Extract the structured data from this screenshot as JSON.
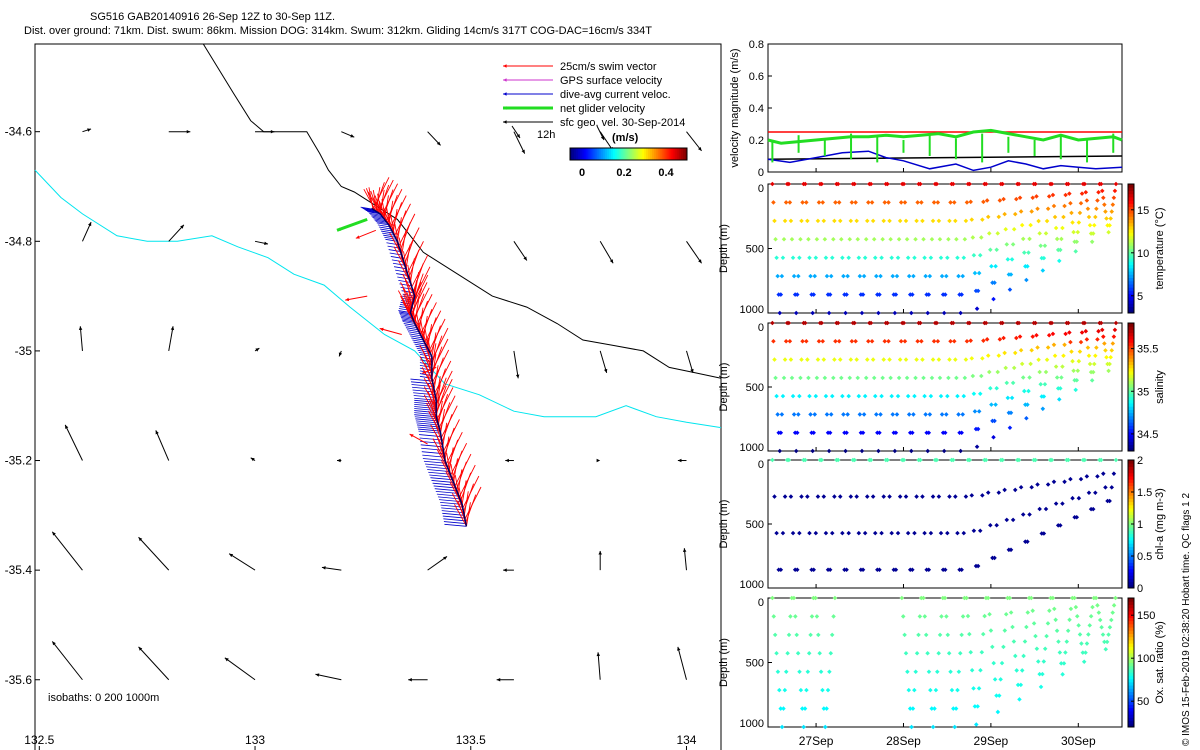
{
  "title_line1": "SG516 GAB20140916 26-Sep 12Z to 30-Sep 11Z.",
  "title_line2": "Dist. over ground: 71km. Dist. swum: 86km. Mission DOG: 314km. Swum: 312km. Gliding 14cm/s 317T COG-DAC=16cm/s 334T",
  "side_note": "© IMOS 15-Feb-2019 02:38:20 Hobart time. QC flags 1  2",
  "colors": {
    "swim": "#ff0000",
    "gps": "#cc33cc",
    "dac": "#0000cc",
    "net": "#22dd22",
    "geo": "#000000",
    "isobath0": "#000000",
    "isobath200": "#00e5ee"
  },
  "map": {
    "x_ticks": [
      "132.5",
      "133",
      "133.5",
      "134"
    ],
    "y_ticks": [
      "-34.6",
      "-34.8",
      "-35",
      "-35.2",
      "-35.4",
      "-35.6"
    ],
    "xlim": [
      132.49,
      134.08
    ],
    "ylim": [
      -35.73,
      -34.44
    ],
    "isobath_label": "isobaths: 0   200   1000m",
    "legend": {
      "swim": "25cm/s swim vector",
      "gps": "GPS surface velocity",
      "dac": "dive-avg current veloc.",
      "net": "net glider velocity",
      "geo": "sfc geo. vel. 30-Sep-2014",
      "time_label": "12h",
      "colorbar_unit": "(m/s)",
      "colorbar_ticks": [
        "0",
        "0.2",
        "0.4"
      ]
    }
  },
  "chart_data": [
    {
      "type": "scatter",
      "name": "track map",
      "xlim": [
        132.49,
        134.08
      ],
      "ylim": [
        -35.73,
        -34.44
      ],
      "isobath_0": [
        [
          132.88,
          -34.44
        ],
        [
          132.95,
          -34.53
        ],
        [
          132.99,
          -34.58
        ],
        [
          133.02,
          -34.6
        ],
        [
          133.12,
          -34.6
        ],
        [
          133.15,
          -34.64
        ],
        [
          133.17,
          -34.67
        ],
        [
          133.2,
          -34.7
        ],
        [
          133.23,
          -34.71
        ],
        [
          133.27,
          -34.73
        ],
        [
          133.33,
          -34.76
        ],
        [
          133.39,
          -34.82
        ],
        [
          133.47,
          -34.86
        ],
        [
          133.55,
          -34.9
        ],
        [
          133.63,
          -34.92
        ],
        [
          133.7,
          -34.95
        ],
        [
          133.76,
          -34.98
        ],
        [
          133.83,
          -34.99
        ],
        [
          133.9,
          -35.0
        ],
        [
          133.96,
          -35.03
        ],
        [
          134.02,
          -35.04
        ],
        [
          134.08,
          -35.05
        ]
      ],
      "isobath_200": [
        [
          132.49,
          -34.67
        ],
        [
          132.55,
          -34.72
        ],
        [
          132.6,
          -34.75
        ],
        [
          132.68,
          -34.79
        ],
        [
          132.75,
          -34.8
        ],
        [
          132.82,
          -34.8
        ],
        [
          132.9,
          -34.79
        ],
        [
          132.96,
          -34.81
        ],
        [
          133.03,
          -34.83
        ],
        [
          133.09,
          -34.86
        ],
        [
          133.16,
          -34.88
        ],
        [
          133.22,
          -34.92
        ],
        [
          133.3,
          -34.97
        ],
        [
          133.37,
          -35.0
        ],
        [
          133.44,
          -35.06
        ],
        [
          133.52,
          -35.08
        ],
        [
          133.6,
          -35.11
        ],
        [
          133.67,
          -35.12
        ],
        [
          133.73,
          -35.12
        ],
        [
          133.79,
          -35.12
        ],
        [
          133.86,
          -35.1
        ],
        [
          133.93,
          -35.12
        ],
        [
          134.0,
          -35.13
        ],
        [
          134.08,
          -35.14
        ]
      ],
      "glider_track": [
        [
          133.49,
          -35.32
        ],
        [
          133.48,
          -35.28
        ],
        [
          133.46,
          -35.24
        ],
        [
          133.44,
          -35.2
        ],
        [
          133.43,
          -35.15
        ],
        [
          133.42,
          -35.12
        ],
        [
          133.42,
          -35.09
        ],
        [
          133.41,
          -35.05
        ],
        [
          133.41,
          -35.01
        ],
        [
          133.39,
          -34.98
        ],
        [
          133.37,
          -34.95
        ],
        [
          133.36,
          -34.93
        ],
        [
          133.37,
          -34.9
        ],
        [
          133.35,
          -34.85
        ],
        [
          133.33,
          -34.8
        ],
        [
          133.31,
          -34.77
        ],
        [
          133.29,
          -34.75
        ],
        [
          133.27,
          -34.74
        ]
      ],
      "geo_vectors": [
        [
          132.6,
          -34.6,
          0.02,
          0.005
        ],
        [
          132.8,
          -34.6,
          0.05,
          0.0
        ],
        [
          133.0,
          -34.6,
          0.045,
          0.0
        ],
        [
          133.2,
          -34.6,
          0.03,
          -0.01
        ],
        [
          133.4,
          -34.6,
          0.03,
          -0.025
        ],
        [
          133.6,
          -34.6,
          0.025,
          -0.04
        ],
        [
          133.8,
          -34.6,
          0.03,
          -0.035
        ],
        [
          134.0,
          -34.6,
          0.035,
          -0.035
        ],
        [
          132.6,
          -34.8,
          0.02,
          0.035
        ],
        [
          132.8,
          -34.8,
          0.035,
          0.03
        ],
        [
          133.0,
          -34.8,
          0.03,
          -0.005
        ],
        [
          133.6,
          -34.8,
          0.03,
          -0.035
        ],
        [
          133.8,
          -34.8,
          0.03,
          -0.04
        ],
        [
          134.0,
          -34.8,
          0.035,
          -0.04
        ],
        [
          132.6,
          -35.0,
          -0.005,
          0.045
        ],
        [
          132.8,
          -35.0,
          0.01,
          0.045
        ],
        [
          133.0,
          -35.0,
          0.01,
          0.005
        ],
        [
          133.2,
          -35.0,
          -0.005,
          -0.01
        ],
        [
          133.6,
          -35.0,
          0.01,
          -0.05
        ],
        [
          133.8,
          -35.0,
          0.015,
          -0.04
        ],
        [
          134.0,
          -35.0,
          0.015,
          -0.04
        ],
        [
          132.6,
          -35.2,
          -0.04,
          0.065
        ],
        [
          132.8,
          -35.2,
          -0.03,
          0.055
        ],
        [
          133.0,
          -35.2,
          -0.01,
          0.005
        ],
        [
          133.2,
          -35.2,
          -0.01,
          0.0
        ],
        [
          133.6,
          -35.2,
          -0.02,
          0.0
        ],
        [
          133.8,
          -35.2,
          0.0,
          0.0
        ],
        [
          134.0,
          -35.2,
          -0.02,
          0.0
        ],
        [
          132.6,
          -35.4,
          -0.07,
          0.07
        ],
        [
          132.8,
          -35.4,
          -0.07,
          0.06
        ],
        [
          133.0,
          -35.4,
          -0.06,
          0.03
        ],
        [
          133.2,
          -35.4,
          -0.045,
          0.005
        ],
        [
          133.4,
          -35.4,
          0.045,
          0.025
        ],
        [
          133.6,
          -35.4,
          -0.025,
          0.0
        ],
        [
          133.8,
          -35.4,
          0.0,
          0.035
        ],
        [
          134.0,
          -35.4,
          -0.005,
          0.04
        ],
        [
          132.6,
          -35.6,
          -0.07,
          0.07
        ],
        [
          132.8,
          -35.6,
          -0.07,
          0.06
        ],
        [
          133.0,
          -35.6,
          -0.07,
          0.04
        ],
        [
          133.2,
          -35.6,
          -0.06,
          0.01
        ],
        [
          133.4,
          -35.6,
          -0.045,
          0.0
        ],
        [
          133.6,
          -35.6,
          -0.04,
          0.0
        ],
        [
          133.8,
          -35.6,
          -0.005,
          0.05
        ],
        [
          134.0,
          -35.6,
          -0.02,
          0.06
        ]
      ]
    },
    {
      "type": "line",
      "name": "velocity timeseries",
      "ylabel": "velocity magnitude (m/s)",
      "ylim": [
        0,
        0.8
      ],
      "yticks": [
        "0",
        "0.2",
        "0.4",
        "0.6",
        "0.8"
      ],
      "xlim": [
        26.45,
        30.5
      ],
      "x_dates": [
        "27Sep",
        "28Sep",
        "29Sep",
        "30Sep"
      ],
      "series": [
        {
          "name": "swim",
          "color": "#ff0000",
          "x": [
            26.45,
            30.5
          ],
          "values": [
            0.25,
            0.25
          ]
        },
        {
          "name": "geo",
          "color": "#000000",
          "x": [
            26.45,
            30.5
          ],
          "values": [
            0.08,
            0.1
          ]
        },
        {
          "name": "dac",
          "color": "#0000cc",
          "x": [
            26.45,
            26.7,
            27.0,
            27.3,
            27.6,
            27.8,
            28.0,
            28.3,
            28.6,
            28.8,
            29.0,
            29.2,
            29.4,
            29.6,
            29.8,
            30.0,
            30.2,
            30.5
          ],
          "values": [
            0.08,
            0.06,
            0.09,
            0.12,
            0.13,
            0.09,
            0.07,
            0.02,
            0.05,
            0.01,
            0.03,
            0.07,
            0.05,
            0.02,
            0.04,
            0.03,
            0.02,
            0.03
          ]
        },
        {
          "name": "net",
          "color": "#22dd22",
          "x": [
            26.45,
            26.6,
            26.8,
            27.0,
            27.2,
            27.4,
            27.6,
            27.8,
            28.0,
            28.2,
            28.4,
            28.6,
            28.8,
            29.0,
            29.2,
            29.4,
            29.6,
            29.8,
            30.0,
            30.2,
            30.4,
            30.5
          ],
          "values": [
            0.2,
            0.18,
            0.19,
            0.2,
            0.21,
            0.22,
            0.22,
            0.23,
            0.22,
            0.23,
            0.24,
            0.22,
            0.25,
            0.26,
            0.24,
            0.22,
            0.2,
            0.23,
            0.2,
            0.21,
            0.22,
            0.2
          ]
        }
      ]
    },
    {
      "type": "scatter",
      "name": "temperature section",
      "ylabel": "Depth (m)",
      "yticks": [
        "0",
        "500",
        "1000"
      ],
      "ylim": [
        1000,
        0
      ],
      "colorbar_label": "temperature (°C)",
      "colorbar_ticks": [
        "5",
        "10",
        "15"
      ],
      "clim": [
        3,
        18
      ],
      "n_dives": 21
    },
    {
      "type": "scatter",
      "name": "salinity section",
      "ylabel": "Depth (m)",
      "yticks": [
        "0",
        "500",
        "1000"
      ],
      "ylim": [
        1000,
        0
      ],
      "colorbar_label": "salinity",
      "colorbar_ticks": [
        "34.5",
        "35",
        "35.5"
      ],
      "clim": [
        34.3,
        35.8
      ],
      "n_dives": 21
    },
    {
      "type": "scatter",
      "name": "chlorophyll section",
      "ylabel": "Depth (m)",
      "yticks": [
        "0",
        "500",
        "1000"
      ],
      "ylim": [
        1000,
        0
      ],
      "colorbar_label": "chl-a (mg m-3)",
      "colorbar_ticks": [
        "0",
        "0.5",
        "1",
        "1.5",
        "2"
      ],
      "clim": [
        0,
        2
      ],
      "n_dives": 21
    },
    {
      "type": "scatter",
      "name": "oxygen section",
      "ylabel": "Depth (m)",
      "yticks": [
        "0",
        "500",
        "1000"
      ],
      "ylim": [
        1000,
        0
      ],
      "colorbar_label": "Ox. sat. ratio (%)",
      "colorbar_ticks": [
        "50",
        "100",
        "150"
      ],
      "clim": [
        20,
        170
      ],
      "n_dives": 16
    },
    {
      "type": "table",
      "name": "time axis",
      "x_dates": [
        "27Sep",
        "28Sep",
        "29Sep",
        "30Sep"
      ]
    }
  ]
}
